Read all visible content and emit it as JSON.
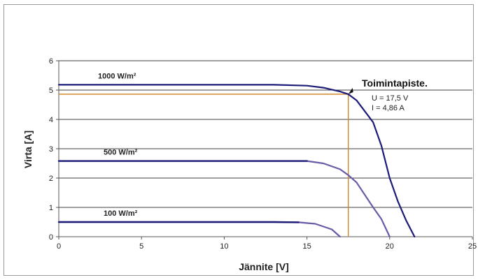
{
  "chart_data": {
    "type": "line",
    "title": "",
    "xlabel": "Jännite [V]",
    "ylabel": "Virta [A]",
    "xlim": [
      0,
      25
    ],
    "ylim": [
      0,
      6
    ],
    "x_ticks": [
      "0",
      "5",
      "10",
      "15",
      "20",
      "25"
    ],
    "y_ticks": [
      "0",
      "1",
      "2",
      "3",
      "4",
      "5",
      "6"
    ],
    "grid": "horizontal",
    "colors": {
      "series": "#1c1c78",
      "secondary": "#6a5aa8",
      "operating_line": "#d08a2c",
      "grid": "#000000"
    },
    "series": [
      {
        "name": "1000 W/m²",
        "points": [
          [
            0,
            5.18
          ],
          [
            13,
            5.18
          ],
          [
            15,
            5.15
          ],
          [
            16,
            5.08
          ],
          [
            17,
            4.95
          ],
          [
            17.5,
            4.86
          ],
          [
            18,
            4.65
          ],
          [
            19,
            3.9
          ],
          [
            19.5,
            3.1
          ],
          [
            20,
            2.0
          ],
          [
            20.5,
            1.2
          ],
          [
            21,
            0.55
          ],
          [
            21.5,
            0
          ]
        ]
      },
      {
        "name": "500 W/m²",
        "points": [
          [
            0,
            2.58
          ],
          [
            15,
            2.58
          ],
          [
            16,
            2.5
          ],
          [
            17,
            2.3
          ],
          [
            17.5,
            2.1
          ],
          [
            18,
            1.85
          ],
          [
            19,
            1.0
          ],
          [
            19.5,
            0.6
          ],
          [
            20,
            0
          ]
        ]
      },
      {
        "name": "100 W/m²",
        "points": [
          [
            0,
            0.5
          ],
          [
            13,
            0.5
          ],
          [
            14.5,
            0.49
          ],
          [
            15.5,
            0.44
          ],
          [
            16.5,
            0.25
          ],
          [
            17,
            0
          ]
        ]
      }
    ],
    "operating_point": {
      "title": "Toimintapiste.",
      "x": 17.5,
      "y": 4.86,
      "label_u": "U = 17,5 V",
      "label_i": "I = 4,86 A"
    }
  }
}
